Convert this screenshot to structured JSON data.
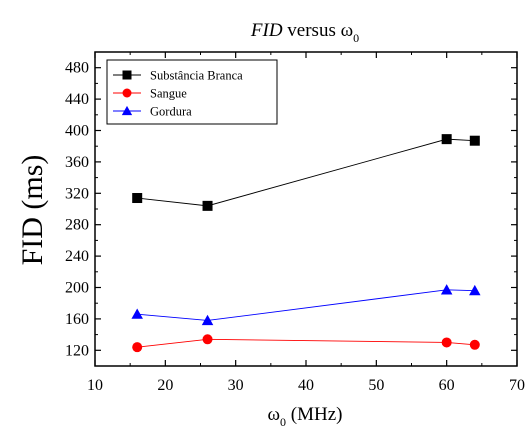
{
  "chart_data": {
    "type": "scatter",
    "title": {
      "main": "FID",
      "connector": " versus ω",
      "subscript": "0"
    },
    "ylabel": "FID (ms)",
    "xlabel": {
      "symbol": "ω",
      "subscript": "0",
      "unit": " (MHz)"
    },
    "xlim": [
      10,
      70
    ],
    "ylim": [
      100,
      500
    ],
    "x_ticks": [
      10,
      20,
      30,
      40,
      50,
      60,
      70
    ],
    "y_ticks": [
      120,
      160,
      200,
      240,
      280,
      320,
      360,
      400,
      440,
      480
    ],
    "grid": false,
    "legend_position": "top-left",
    "series": [
      {
        "name": "Substância Branca",
        "marker": "square",
        "color": "#000000",
        "line_color": "#000000",
        "points": [
          [
            16,
            314
          ],
          [
            26,
            304
          ],
          [
            60,
            389
          ],
          [
            64,
            387
          ]
        ]
      },
      {
        "name": "Sangue",
        "marker": "circle",
        "color": "#ff0000",
        "line_color": "#ff0000",
        "points": [
          [
            16,
            124
          ],
          [
            26,
            134
          ],
          [
            60,
            130
          ],
          [
            64,
            127
          ]
        ]
      },
      {
        "name": "Gordura",
        "marker": "triangle",
        "color": "#0000ff",
        "line_color": "#0000ff",
        "points": [
          [
            16,
            166
          ],
          [
            26,
            158
          ],
          [
            60,
            197
          ],
          [
            64,
            196
          ]
        ]
      }
    ]
  }
}
